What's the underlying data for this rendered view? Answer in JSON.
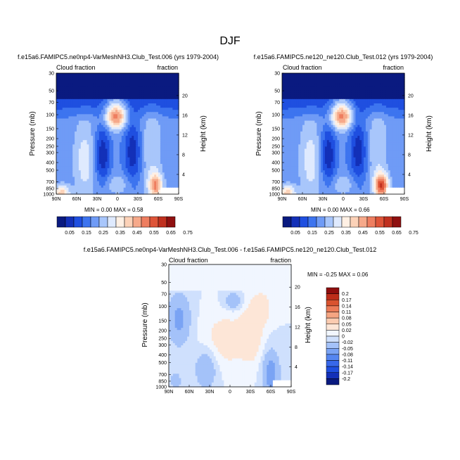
{
  "figure": {
    "title": "DJF"
  },
  "colors": {
    "top_scale": [
      "#0a1a80",
      "#1330b8",
      "#1f4fe0",
      "#3d74ef",
      "#6f9bf6",
      "#a8c6fb",
      "#dfeafe",
      "#fff0e4",
      "#fcd2b8",
      "#f6a98a",
      "#ee7e60",
      "#de5438",
      "#c0301f",
      "#8f1010"
    ],
    "diff_scale": [
      "#0a1a80",
      "#1330b8",
      "#1f4fe0",
      "#3868ea",
      "#5586f0",
      "#7aa3f4",
      "#a4c2f9",
      "#cfe0fd",
      "#f1f6ff",
      "#fde6d7",
      "#fbcbb0",
      "#f5a582",
      "#ec7c58",
      "#d9532f",
      "#bd2d1a",
      "#8f0e0e"
    ]
  },
  "chart_data": [
    {
      "type": "heatmap",
      "title": "f.e15a6.FAMIPC5.ne0np4-VarMeshNH3.Club_Test.006 (yrs 1979-2004)",
      "left_label": "Cloud fraction",
      "right_label": "fraction",
      "xlabel": "",
      "ylabel": "Pressure (mb)",
      "y2label": "Height (km)",
      "x_ticks": [
        "90N",
        "60N",
        "30N",
        "0",
        "30S",
        "60S",
        "90S"
      ],
      "y_ticks": [
        "1000",
        "850",
        "700",
        "500",
        "400",
        "300",
        "250",
        "200",
        "150",
        "100",
        "70",
        "50",
        "30"
      ],
      "y2_ticks": [
        "4",
        "8",
        "12",
        "16",
        "20"
      ],
      "min": 0.0,
      "max": 0.58,
      "stats_text": "MIN =   0.00  MAX =   0.58",
      "colorbar_labels": [
        "0.05",
        "0.15",
        "0.25",
        "0.35",
        "0.45",
        "0.55",
        "0.65",
        "0.75"
      ]
    },
    {
      "type": "heatmap",
      "title": "f.e15a6.FAMIPC5.ne120_ne120.Club_Test.012 (yrs 1979-2004)",
      "left_label": "Cloud fraction",
      "right_label": "fraction",
      "xlabel": "",
      "ylabel": "Pressure (mb)",
      "y2label": "Height (km)",
      "x_ticks": [
        "90N",
        "60N",
        "30N",
        "0",
        "30S",
        "60S",
        "90S"
      ],
      "y_ticks": [
        "1000",
        "850",
        "700",
        "500",
        "400",
        "300",
        "250",
        "200",
        "150",
        "100",
        "70",
        "50",
        "30"
      ],
      "y2_ticks": [
        "4",
        "8",
        "12",
        "16",
        "20"
      ],
      "min": 0.0,
      "max": 0.66,
      "stats_text": "MIN =   0.00  MAX =   0.66",
      "colorbar_labels": [
        "0.05",
        "0.15",
        "0.25",
        "0.35",
        "0.45",
        "0.55",
        "0.65",
        "0.75"
      ]
    },
    {
      "type": "heatmap",
      "title": "f.e15a6.FAMIPC5.ne0np4-VarMeshNH3.Club_Test.006 - f.e15a6.FAMIPC5.ne120_ne120.Club_Test.012",
      "left_label": "Cloud fraction",
      "right_label": "fraction",
      "xlabel": "",
      "ylabel": "Pressure (mb)",
      "y2label": "Height (km)",
      "x_ticks": [
        "90N",
        "60N",
        "30N",
        "0",
        "30S",
        "60S",
        "90S"
      ],
      "y_ticks": [
        "1000",
        "850",
        "700",
        "500",
        "400",
        "300",
        "250",
        "200",
        "150",
        "100",
        "70",
        "50",
        "30"
      ],
      "y2_ticks": [
        "4",
        "8",
        "12",
        "16",
        "20"
      ],
      "min": -0.25,
      "max": 0.06,
      "stats_text": "MIN =  -0.25  MAX =   0.06",
      "colorbar_labels": [
        "0.2",
        "0.17",
        "0.14",
        "0.11",
        "0.08",
        "0.05",
        "0.02",
        "0",
        "-0.02",
        "-0.05",
        "-0.08",
        "-0.11",
        "-0.14",
        "-0.17",
        "-0.2"
      ]
    }
  ]
}
